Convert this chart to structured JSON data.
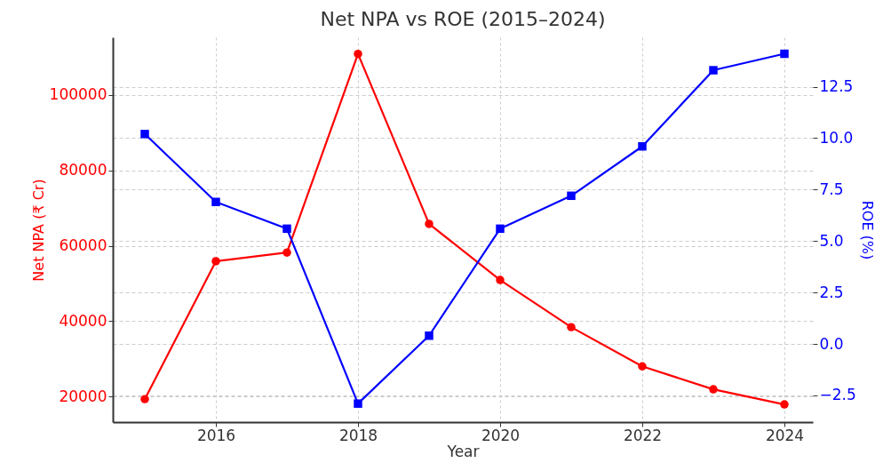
{
  "chart_data": {
    "type": "line",
    "title": "Net NPA vs ROE (2015–2024)",
    "xlabel": "Year",
    "ylabel": "Net NPA (₹ Cr)",
    "y2label": "ROE (%)",
    "x": [
      2015,
      2016,
      2017,
      2018,
      2019,
      2020,
      2021,
      2022,
      2023,
      2024
    ],
    "series": [
      {
        "color": "#ff0000",
        "marker": "circle",
        "values": [
          19300,
          55900,
          58200,
          110900,
          65800,
          50900,
          38400,
          28000,
          21900,
          17900
        ]
      },
      {
        "color": "#0000ff",
        "marker": "square",
        "axis": "y2",
        "values": [
          10.2,
          6.9,
          5.6,
          -2.9,
          0.4,
          5.6,
          7.2,
          9.6,
          13.3,
          14.1
        ]
      }
    ],
    "xlim": [
      2014.55,
      2024.4
    ],
    "xticks": [
      2016,
      2018,
      2020,
      2022,
      2024
    ],
    "ylim": [
      13200,
      115300
    ],
    "yticks": [
      20000,
      40000,
      60000,
      80000,
      100000
    ],
    "y2lim": [
      -3.8,
      14.9
    ],
    "y2ticks": [
      {
        "value": -2.5,
        "label": "−2.5"
      },
      {
        "value": 0,
        "label": "0.0"
      },
      {
        "value": 2.5,
        "label": "2.5"
      },
      {
        "value": 5,
        "label": "5.0"
      },
      {
        "value": 7.5,
        "label": "7.5"
      },
      {
        "value": 10,
        "label": "10.0"
      },
      {
        "value": 12.5,
        "label": "12.5"
      }
    ],
    "grid": true
  }
}
